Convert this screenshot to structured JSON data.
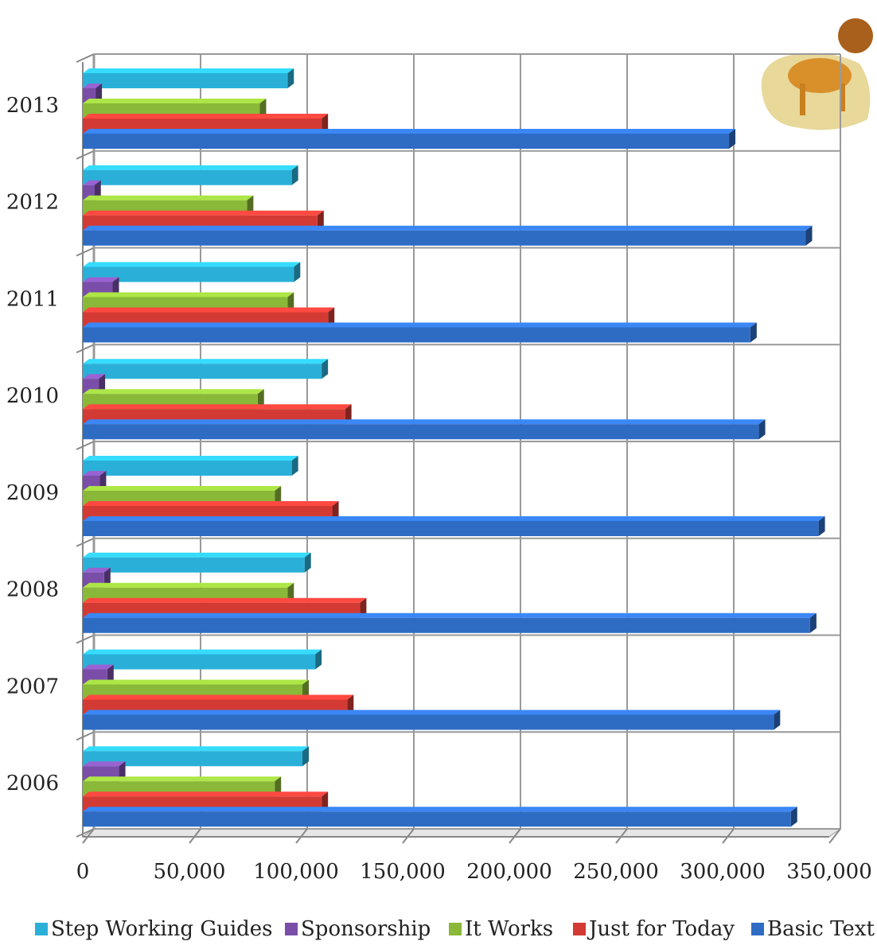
{
  "chart_data": {
    "type": "bar",
    "orientation": "horizontal",
    "categories": [
      "2006",
      "2007",
      "2008",
      "2009",
      "2010",
      "2011",
      "2012",
      "2013"
    ],
    "series": [
      {
        "name": "Step Working Guides",
        "color": "#2ab0d8",
        "values": [
          103000,
          109000,
          104000,
          98000,
          112000,
          99000,
          98000,
          96000
        ]
      },
      {
        "name": "Sponsorship",
        "color": "#7a4ea8",
        "values": [
          17000,
          11500,
          10000,
          8000,
          7500,
          14000,
          5500,
          6000
        ]
      },
      {
        "name": "It Works",
        "color": "#8ab838",
        "values": [
          90000,
          103000,
          96000,
          90000,
          82000,
          96000,
          77000,
          83000
        ]
      },
      {
        "name": "Just for Today",
        "color": "#d43a34",
        "values": [
          112000,
          124000,
          130000,
          117000,
          123000,
          115000,
          110000,
          112000
        ]
      },
      {
        "name": "Basic Text",
        "color": "#2e6cc4",
        "values": [
          332000,
          324000,
          341000,
          345000,
          317000,
          313000,
          339000,
          303000
        ]
      }
    ],
    "xlim": [
      0,
      350000
    ],
    "xticks": [
      0,
      {
        "value": 50000,
        "label": "50,000"
      },
      {
        "value": 100000,
        "label": "100,000"
      },
      {
        "value": 150000,
        "label": "150,000"
      },
      {
        "value": 200000,
        "label": "200,000"
      },
      {
        "value": 250000,
        "label": "250,000"
      },
      {
        "value": 300000,
        "label": "300,000"
      },
      {
        "value": 350000,
        "label": "350,000"
      }
    ],
    "grid": true,
    "legend": "bottom"
  }
}
